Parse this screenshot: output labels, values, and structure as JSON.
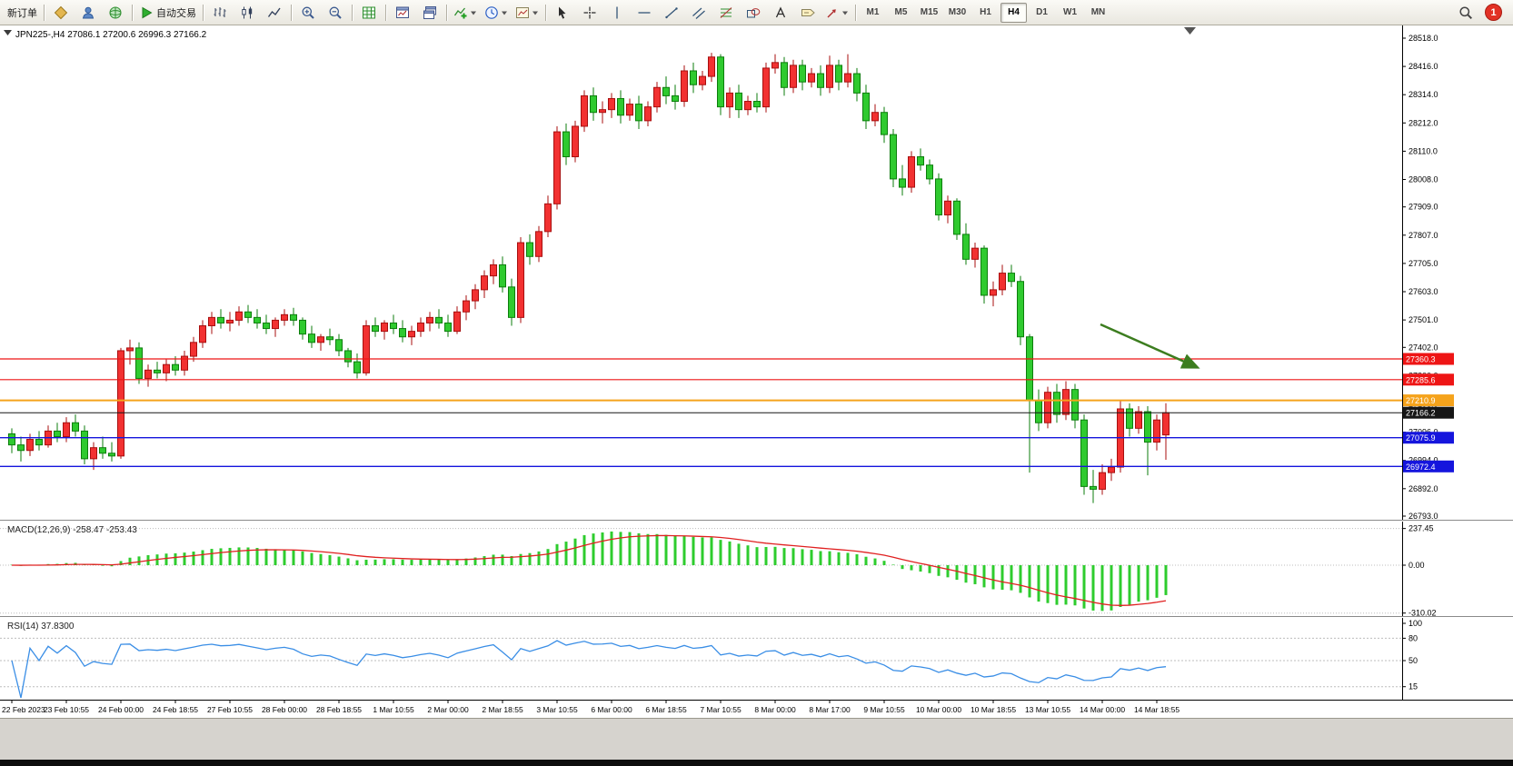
{
  "toolbar": {
    "new_order_label": "新订单",
    "auto_trading_label": "自动交易",
    "timeframes": [
      "M1",
      "M5",
      "M15",
      "M30",
      "H1",
      "H4",
      "D1",
      "W1",
      "MN"
    ],
    "active_timeframe": "H4",
    "notification_badge": "1",
    "groups": [
      {
        "buttons": [
          {
            "name": "new-order-button",
            "label_key": "new_order_label"
          }
        ]
      },
      {
        "buttons": [
          {
            "icon": "chart-diamond"
          },
          {
            "icon": "person"
          },
          {
            "icon": "globe"
          }
        ]
      },
      {
        "buttons": [
          {
            "name": "auto-trading-button",
            "icon": "play",
            "label_key": "auto_trading_label"
          }
        ]
      },
      {
        "buttons": [
          {
            "icon": "bar-chart"
          },
          {
            "icon": "candle-chart"
          },
          {
            "icon": "line-chart"
          }
        ]
      },
      {
        "buttons": [
          {
            "icon": "zoom-in"
          },
          {
            "icon": "zoom-out"
          }
        ]
      },
      {
        "buttons": [
          {
            "icon": "grid"
          }
        ]
      },
      {
        "buttons": [
          {
            "icon": "window-tile"
          },
          {
            "icon": "window-cascade"
          }
        ]
      },
      {
        "buttons": [
          {
            "icon": "add-indicator",
            "caret": true
          },
          {
            "icon": "clock",
            "caret": true
          },
          {
            "icon": "template",
            "caret": true
          }
        ]
      },
      {
        "buttons": [
          {
            "icon": "cursor"
          },
          {
            "icon": "crosshair"
          },
          {
            "icon": "vline"
          },
          {
            "icon": "hline"
          },
          {
            "icon": "trendline"
          },
          {
            "icon": "channel"
          },
          {
            "icon": "fibonacci"
          },
          {
            "icon": "shapes"
          },
          {
            "icon": "text"
          },
          {
            "icon": "text-label"
          },
          {
            "icon": "arrow-tools",
            "caret": true
          }
        ]
      },
      {
        "timeframes": true
      }
    ]
  },
  "chart": {
    "symbol_period": "JPN225-,H4",
    "ohlc_text": "27086.1 27200.6 26996.3 27166.2"
  },
  "chart_data": {
    "type": "candlestick",
    "symbol": "JPN225-",
    "timeframe": "H4",
    "current_bar": {
      "open": 27086.1,
      "high": 27200.6,
      "low": 26996.3,
      "close": 27166.2
    },
    "price_axis_labels": [
      "28518.0",
      "28416.0",
      "28314.0",
      "28212.0",
      "28110.0",
      "28008.0",
      "27909.0",
      "27807.0",
      "27705.0",
      "27603.0",
      "27501.0",
      "27402.0",
      "27300.0",
      "27198.0",
      "27096.0",
      "26994.0",
      "26892.0",
      "26793.0"
    ],
    "time_labels": [
      "22 Feb 2023",
      "23 Feb 10:55",
      "24 Feb 00:00",
      "24 Feb 18:55",
      "27 Feb 10:55",
      "28 Feb 00:00",
      "28 Feb 18:55",
      "1 Mar 10:55",
      "2 Mar 00:00",
      "2 Mar 18:55",
      "3 Mar 10:55",
      "6 Mar 00:00",
      "6 Mar 18:55",
      "7 Mar 10:55",
      "8 Mar 00:00",
      "8 Mar 17:00",
      "9 Mar 10:55",
      "10 Mar 00:00",
      "10 Mar 18:55",
      "13 Mar 10:55",
      "14 Mar 00:00",
      "14 Mar 18:55"
    ],
    "bars_per_label": 6,
    "candles": [
      [
        27090,
        27110,
        27020,
        27050
      ],
      [
        27050,
        27080,
        26990,
        27030
      ],
      [
        27030,
        27090,
        27010,
        27070
      ],
      [
        27070,
        27100,
        27030,
        27050
      ],
      [
        27050,
        27120,
        27040,
        27100
      ],
      [
        27100,
        27130,
        27060,
        27080
      ],
      [
        27080,
        27150,
        27060,
        27130
      ],
      [
        27130,
        27160,
        27080,
        27100
      ],
      [
        27100,
        27120,
        26980,
        27000
      ],
      [
        27000,
        27060,
        26960,
        27040
      ],
      [
        27040,
        27080,
        27000,
        27020
      ],
      [
        27020,
        27060,
        26990,
        27010
      ],
      [
        27010,
        27400,
        27000,
        27390
      ],
      [
        27390,
        27430,
        27340,
        27400
      ],
      [
        27400,
        27420,
        27270,
        27290
      ],
      [
        27290,
        27340,
        27260,
        27320
      ],
      [
        27320,
        27350,
        27290,
        27310
      ],
      [
        27310,
        27360,
        27280,
        27340
      ],
      [
        27340,
        27370,
        27300,
        27320
      ],
      [
        27320,
        27390,
        27300,
        27370
      ],
      [
        27370,
        27440,
        27350,
        27420
      ],
      [
        27420,
        27500,
        27400,
        27480
      ],
      [
        27480,
        27530,
        27450,
        27510
      ],
      [
        27510,
        27540,
        27470,
        27490
      ],
      [
        27490,
        27530,
        27460,
        27500
      ],
      [
        27500,
        27550,
        27480,
        27530
      ],
      [
        27530,
        27555,
        27490,
        27510
      ],
      [
        27510,
        27540,
        27470,
        27490
      ],
      [
        27490,
        27520,
        27450,
        27470
      ],
      [
        27470,
        27510,
        27440,
        27500
      ],
      [
        27500,
        27540,
        27480,
        27520
      ],
      [
        27520,
        27545,
        27480,
        27500
      ],
      [
        27500,
        27510,
        27430,
        27450
      ],
      [
        27450,
        27480,
        27400,
        27420
      ],
      [
        27420,
        27450,
        27390,
        27440
      ],
      [
        27440,
        27470,
        27410,
        27430
      ],
      [
        27430,
        27450,
        27370,
        27390
      ],
      [
        27390,
        27400,
        27330,
        27350
      ],
      [
        27350,
        27380,
        27290,
        27310
      ],
      [
        27310,
        27500,
        27300,
        27480
      ],
      [
        27480,
        27510,
        27440,
        27460
      ],
      [
        27460,
        27500,
        27430,
        27490
      ],
      [
        27490,
        27520,
        27450,
        27470
      ],
      [
        27470,
        27500,
        27420,
        27440
      ],
      [
        27440,
        27480,
        27410,
        27460
      ],
      [
        27460,
        27510,
        27440,
        27490
      ],
      [
        27490,
        27530,
        27460,
        27510
      ],
      [
        27510,
        27540,
        27470,
        27490
      ],
      [
        27490,
        27520,
        27440,
        27460
      ],
      [
        27460,
        27550,
        27450,
        27530
      ],
      [
        27530,
        27590,
        27500,
        27570
      ],
      [
        27570,
        27630,
        27540,
        27610
      ],
      [
        27610,
        27680,
        27580,
        27660
      ],
      [
        27660,
        27720,
        27630,
        27700
      ],
      [
        27700,
        27730,
        27600,
        27620
      ],
      [
        27620,
        27650,
        27480,
        27510
      ],
      [
        27510,
        27800,
        27490,
        27780
      ],
      [
        27780,
        27810,
        27700,
        27730
      ],
      [
        27730,
        27840,
        27710,
        27820
      ],
      [
        27820,
        27950,
        27800,
        27920
      ],
      [
        27920,
        28200,
        27900,
        28180
      ],
      [
        28180,
        28210,
        28060,
        28090
      ],
      [
        28090,
        28220,
        28070,
        28200
      ],
      [
        28200,
        28330,
        28180,
        28310
      ],
      [
        28310,
        28340,
        28220,
        28250
      ],
      [
        28250,
        28290,
        28210,
        28260
      ],
      [
        28260,
        28320,
        28230,
        28300
      ],
      [
        28300,
        28330,
        28210,
        28240
      ],
      [
        28240,
        28300,
        28220,
        28280
      ],
      [
        28280,
        28310,
        28190,
        28220
      ],
      [
        28220,
        28290,
        28200,
        28270
      ],
      [
        28270,
        28360,
        28250,
        28340
      ],
      [
        28340,
        28380,
        28280,
        28310
      ],
      [
        28310,
        28350,
        28260,
        28290
      ],
      [
        28290,
        28420,
        28270,
        28400
      ],
      [
        28400,
        28430,
        28320,
        28350
      ],
      [
        28350,
        28400,
        28330,
        28380
      ],
      [
        28380,
        28465,
        28360,
        28450
      ],
      [
        28450,
        28460,
        28240,
        28270
      ],
      [
        28270,
        28340,
        28230,
        28320
      ],
      [
        28320,
        28350,
        28230,
        28260
      ],
      [
        28260,
        28310,
        28240,
        28290
      ],
      [
        28290,
        28320,
        28250,
        28270
      ],
      [
        28270,
        28430,
        28250,
        28410
      ],
      [
        28410,
        28460,
        28390,
        28430
      ],
      [
        28430,
        28450,
        28310,
        28340
      ],
      [
        28340,
        28440,
        28320,
        28420
      ],
      [
        28420,
        28440,
        28330,
        28360
      ],
      [
        28360,
        28410,
        28340,
        28390
      ],
      [
        28390,
        28420,
        28310,
        28340
      ],
      [
        28340,
        28455,
        28320,
        28420
      ],
      [
        28420,
        28440,
        28330,
        28360
      ],
      [
        28360,
        28460,
        28340,
        28390
      ],
      [
        28390,
        28410,
        28290,
        28320
      ],
      [
        28320,
        28350,
        28190,
        28220
      ],
      [
        28220,
        28280,
        28200,
        28250
      ],
      [
        28250,
        28270,
        28140,
        28170
      ],
      [
        28170,
        28190,
        27980,
        28010
      ],
      [
        28010,
        28060,
        27950,
        27980
      ],
      [
        27980,
        28110,
        27960,
        28090
      ],
      [
        28090,
        28120,
        28040,
        28060
      ],
      [
        28060,
        28080,
        27990,
        28010
      ],
      [
        28010,
        28030,
        27860,
        27880
      ],
      [
        27880,
        27950,
        27850,
        27930
      ],
      [
        27930,
        27940,
        27790,
        27810
      ],
      [
        27810,
        27850,
        27700,
        27720
      ],
      [
        27720,
        27780,
        27690,
        27760
      ],
      [
        27760,
        27770,
        27560,
        27590
      ],
      [
        27590,
        27640,
        27550,
        27610
      ],
      [
        27610,
        27700,
        27590,
        27670
      ],
      [
        27670,
        27700,
        27620,
        27640
      ],
      [
        27640,
        27660,
        27410,
        27440
      ],
      [
        27440,
        27450,
        26950,
        27210
      ],
      [
        27210,
        27250,
        27100,
        27130
      ],
      [
        27130,
        27260,
        27110,
        27240
      ],
      [
        27240,
        27270,
        27130,
        27160
      ],
      [
        27160,
        27280,
        27140,
        27250
      ],
      [
        27250,
        27270,
        27110,
        27140
      ],
      [
        27140,
        27160,
        26870,
        26900
      ],
      [
        26900,
        26960,
        26840,
        26890
      ],
      [
        26890,
        26980,
        26870,
        26950
      ],
      [
        26950,
        27000,
        26920,
        26970
      ],
      [
        26970,
        27210,
        26950,
        27180
      ],
      [
        27180,
        27200,
        27080,
        27110
      ],
      [
        27110,
        27190,
        27090,
        27170
      ],
      [
        27170,
        27190,
        26940,
        27060
      ],
      [
        27060,
        27160,
        27030,
        27140
      ],
      [
        27086.1,
        27200.6,
        26996.3,
        27166.2
      ]
    ],
    "levels": [
      {
        "price": 27360.3,
        "label": "27360.3",
        "color": "#ee1515",
        "width": 1.2,
        "type": "resistance-line"
      },
      {
        "price": 27285.6,
        "label": "27285.6",
        "color": "#ee1515",
        "width": 1.2,
        "type": "resistance-line"
      },
      {
        "price": 27210.9,
        "label": "27210.9",
        "color": "#f5a31c",
        "width": 2,
        "type": "pivot-line"
      },
      {
        "price": 27166.2,
        "label": "27166.2",
        "color": "#161616",
        "width": 1,
        "type": "current-price-line"
      },
      {
        "price": 27075.9,
        "label": "27075.9",
        "color": "#1515dd",
        "width": 1.4,
        "type": "support-line"
      },
      {
        "price": 26972.4,
        "label": "26972.4",
        "color": "#1515dd",
        "width": 1.4,
        "type": "support-line"
      }
    ],
    "annotations": [
      {
        "type": "arrow",
        "from_bar": 119.8,
        "from_price": 27485,
        "to_bar": 130.3,
        "to_price": 27332,
        "color": "#3c7d1f"
      }
    ],
    "indicators": {
      "macd": {
        "label": "MACD(12,26,9)",
        "macd_value": "-258.47",
        "signal_value": "-253.43",
        "axis_labels": [
          "237.45",
          "0.00",
          "-310.02"
        ],
        "axis_values": [
          237.45,
          0,
          -310.02
        ],
        "histogram_color": "#2ecc2e",
        "signal_color": "#e02020"
      },
      "rsi": {
        "label": "RSI(14)",
        "value": "37.8300",
        "axis_labels": [
          "100",
          "80",
          "50",
          "15"
        ],
        "axis_values": [
          100,
          80,
          50,
          15
        ],
        "level_lines": [
          80,
          50,
          15
        ],
        "line_color": "#3a8ee6"
      }
    },
    "colors": {
      "bull": "#f23131",
      "bull_border": "#a80f0f",
      "bear": "#2fca2f",
      "bear_border": "#0c7e0c",
      "background": "#ffffff",
      "axis_text": "#000000"
    }
  }
}
